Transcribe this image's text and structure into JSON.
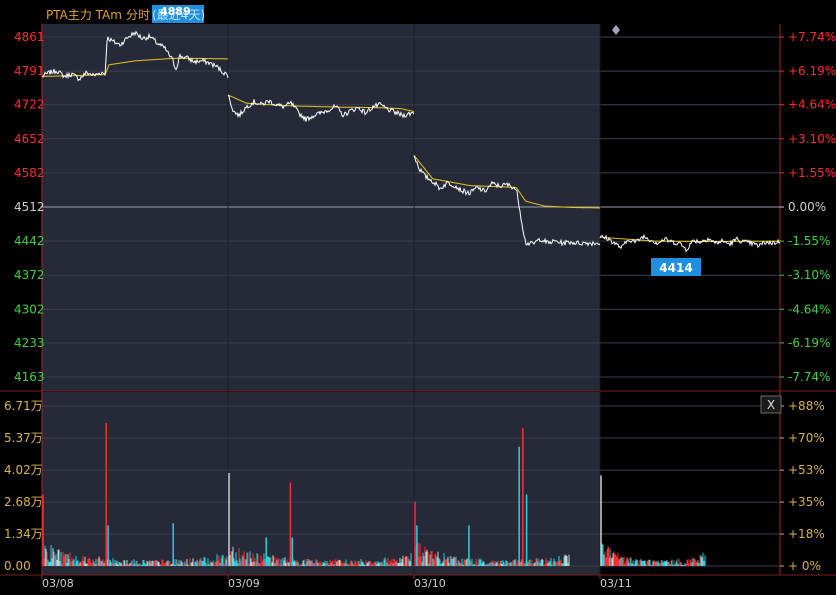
{
  "header": {
    "instrument_label": "PTA主力 TAm",
    "mode_label": "分时",
    "period_label": "(最近4天)",
    "overlay_value": "4889"
  },
  "close_button_label": "X",
  "current_price_badge": "4414",
  "colors": {
    "background": "#000000",
    "history_panel_bg": "#262a38",
    "up": "#ff2a2a",
    "down": "#3fd23f",
    "neutral": "#cfcfcf",
    "price_line": "#ffffff",
    "avg_line": "#e6c619",
    "volume_up": "#ff2d2d",
    "volume_down": "#22d3e0",
    "badge_bg": "#1f8fe0",
    "header_text": "#e2a227"
  },
  "chart_data": [
    {
      "type": "line",
      "title": "PTA主力 TAm 分时 (最近4天)",
      "reference_price": 4512,
      "y_ticks": [
        4861,
        4791,
        4722,
        4652,
        4582,
        4512,
        4442,
        4372,
        4302,
        4233,
        4163
      ],
      "y_right_ticks": [
        "+7.74%",
        "+6.19%",
        "+4.64%",
        "+3.10%",
        "+1.55%",
        "0.00%",
        "-1.55%",
        "-3.10%",
        "-4.64%",
        "-6.19%",
        "-7.74%"
      ],
      "ylim": [
        4163,
        4861
      ],
      "x_tick_labels": [
        "03/08",
        "03/09",
        "03/10",
        "03/11"
      ],
      "grid": true,
      "series": [
        {
          "name": "price",
          "segments": [
            {
              "day": "03/08",
              "points": [
                [
                  0,
                  4780
                ],
                [
                  0.04,
                  4788
                ],
                [
                  0.08,
                  4792
                ],
                [
                  0.12,
                  4780
                ],
                [
                  0.16,
                  4785
                ],
                [
                  0.2,
                  4775
                ],
                [
                  0.24,
                  4788
                ],
                [
                  0.28,
                  4782
                ],
                [
                  0.32,
                  4788
                ],
                [
                  0.34,
                  4785
                ],
                [
                  0.35,
                  4860
                ],
                [
                  0.38,
                  4852
                ],
                [
                  0.42,
                  4845
                ],
                [
                  0.46,
                  4860
                ],
                [
                  0.5,
                  4870
                ],
                [
                  0.54,
                  4858
                ],
                [
                  0.58,
                  4862
                ],
                [
                  0.62,
                  4848
                ],
                [
                  0.66,
                  4838
                ],
                [
                  0.7,
                  4815
                ],
                [
                  0.72,
                  4795
                ],
                [
                  0.74,
                  4822
                ],
                [
                  0.78,
                  4818
                ],
                [
                  0.82,
                  4810
                ],
                [
                  0.86,
                  4812
                ],
                [
                  0.9,
                  4808
                ],
                [
                  0.94,
                  4800
                ],
                [
                  0.97,
                  4790
                ],
                [
                  1,
                  4782
                ]
              ]
            },
            {
              "day": "03/09",
              "points": [
                [
                  0,
                  4742
                ],
                [
                  0.03,
                  4708
                ],
                [
                  0.06,
                  4700
                ],
                [
                  0.1,
                  4718
                ],
                [
                  0.14,
                  4728
                ],
                [
                  0.18,
                  4722
                ],
                [
                  0.22,
                  4730
                ],
                [
                  0.26,
                  4722
                ],
                [
                  0.3,
                  4718
                ],
                [
                  0.34,
                  4725
                ],
                [
                  0.38,
                  4705
                ],
                [
                  0.42,
                  4692
                ],
                [
                  0.46,
                  4700
                ],
                [
                  0.5,
                  4705
                ],
                [
                  0.54,
                  4712
                ],
                [
                  0.58,
                  4718
                ],
                [
                  0.62,
                  4700
                ],
                [
                  0.66,
                  4710
                ],
                [
                  0.7,
                  4716
                ],
                [
                  0.74,
                  4705
                ],
                [
                  0.78,
                  4718
                ],
                [
                  0.82,
                  4722
                ],
                [
                  0.86,
                  4712
                ],
                [
                  0.9,
                  4706
                ],
                [
                  0.94,
                  4700
                ],
                [
                  0.97,
                  4703
                ],
                [
                  1,
                  4706
                ]
              ]
            },
            {
              "day": "03/10",
              "points": [
                [
                  0,
                  4618
                ],
                [
                  0.03,
                  4590
                ],
                [
                  0.06,
                  4575
                ],
                [
                  0.1,
                  4565
                ],
                [
                  0.14,
                  4550
                ],
                [
                  0.18,
                  4562
                ],
                [
                  0.22,
                  4556
                ],
                [
                  0.26,
                  4545
                ],
                [
                  0.3,
                  4540
                ],
                [
                  0.34,
                  4552
                ],
                [
                  0.38,
                  4544
                ],
                [
                  0.42,
                  4560
                ],
                [
                  0.46,
                  4555
                ],
                [
                  0.5,
                  4558
                ],
                [
                  0.54,
                  4552
                ],
                [
                  0.555,
                  4540
                ],
                [
                  0.58,
                  4480
                ],
                [
                  0.6,
                  4438
                ],
                [
                  0.64,
                  4436
                ],
                [
                  0.68,
                  4447
                ],
                [
                  0.72,
                  4438
                ],
                [
                  0.76,
                  4442
                ],
                [
                  0.8,
                  4438
                ],
                [
                  0.84,
                  4440
                ],
                [
                  0.88,
                  4438
                ],
                [
                  0.92,
                  4438
                ],
                [
                  0.96,
                  4438
                ],
                [
                  1,
                  4438
                ]
              ]
            },
            {
              "day": "03/11",
              "points": [
                [
                  0,
                  4450
                ],
                [
                  0.04,
                  4448
                ],
                [
                  0.08,
                  4438
                ],
                [
                  0.12,
                  4428
                ],
                [
                  0.16,
                  4446
                ],
                [
                  0.2,
                  4440
                ],
                [
                  0.24,
                  4452
                ],
                [
                  0.28,
                  4445
                ],
                [
                  0.32,
                  4438
                ],
                [
                  0.36,
                  4446
                ],
                [
                  0.4,
                  4440
                ],
                [
                  0.44,
                  4438
                ],
                [
                  0.48,
                  4425
                ],
                [
                  0.52,
                  4444
                ],
                [
                  0.56,
                  4440
                ],
                [
                  0.6,
                  4448
                ],
                [
                  0.64,
                  4438
                ],
                [
                  0.68,
                  4442
                ],
                [
                  0.72,
                  4436
                ],
                [
                  0.76,
                  4446
                ],
                [
                  0.8,
                  4440
                ],
                [
                  0.84,
                  4438
                ],
                [
                  0.88,
                  4432
                ],
                [
                  0.92,
                  4440
                ],
                [
                  0.96,
                  4438
                ],
                [
                  1,
                  4441
                ]
              ]
            }
          ]
        },
        {
          "name": "average",
          "segments": [
            {
              "day": "03/08",
              "points": [
                [
                  0,
                  4780
                ],
                [
                  0.2,
                  4782
                ],
                [
                  0.34,
                  4784
                ],
                [
                  0.36,
                  4804
                ],
                [
                  0.5,
                  4812
                ],
                [
                  0.7,
                  4817
                ],
                [
                  0.85,
                  4817
                ],
                [
                  1,
                  4816
                ]
              ]
            },
            {
              "day": "03/09",
              "points": [
                [
                  0,
                  4742
                ],
                [
                  0.1,
                  4725
                ],
                [
                  0.3,
                  4720
                ],
                [
                  0.6,
                  4717
                ],
                [
                  0.8,
                  4716
                ],
                [
                  0.93,
                  4714
                ],
                [
                  1,
                  4708
                ]
              ]
            },
            {
              "day": "03/10",
              "points": [
                [
                  0,
                  4618
                ],
                [
                  0.1,
                  4570
                ],
                [
                  0.3,
                  4556
                ],
                [
                  0.5,
                  4553
                ],
                [
                  0.55,
                  4552
                ],
                [
                  0.6,
                  4524
                ],
                [
                  0.7,
                  4514
                ],
                [
                  0.85,
                  4511
                ],
                [
                  1,
                  4510
                ]
              ]
            },
            {
              "day": "03/11",
              "points": [
                [
                  0,
                  4450
                ],
                [
                  0.3,
                  4442
                ],
                [
                  0.6,
                  4441
                ],
                [
                  1,
                  4442
                ]
              ]
            }
          ]
        }
      ]
    },
    {
      "type": "bar",
      "title": "volume",
      "y_ticks": [
        "6.71万",
        "5.37万",
        "4.02万",
        "2.68万",
        "1.34万",
        "0.00"
      ],
      "y_right_ticks": [
        "+88%",
        "+70%",
        "+53%",
        "+35%",
        "+18%",
        "+ 0%"
      ],
      "ylim": [
        0,
        67100
      ],
      "x_tick_labels": [
        "03/08",
        "03/09",
        "03/10",
        "03/11"
      ],
      "spikes": [
        {
          "day": "03/08",
          "pos": 0.0,
          "value": 30000,
          "dir": "up"
        },
        {
          "day": "03/08",
          "pos": 0.34,
          "value": 60000,
          "dir": "up"
        },
        {
          "day": "03/08",
          "pos": 0.35,
          "value": 17000,
          "dir": "down"
        },
        {
          "day": "03/08",
          "pos": 0.7,
          "value": 18000,
          "dir": "down"
        },
        {
          "day": "03/09",
          "pos": 0.0,
          "value": 39000,
          "dir": "neutral"
        },
        {
          "day": "03/09",
          "pos": 0.2,
          "value": 12000,
          "dir": "down"
        },
        {
          "day": "03/09",
          "pos": 0.33,
          "value": 35000,
          "dir": "up"
        },
        {
          "day": "03/09",
          "pos": 0.34,
          "value": 12000,
          "dir": "down"
        },
        {
          "day": "03/10",
          "pos": 0.0,
          "value": 27000,
          "dir": "up"
        },
        {
          "day": "03/10",
          "pos": 0.01,
          "value": 17000,
          "dir": "down"
        },
        {
          "day": "03/10",
          "pos": 0.29,
          "value": 17000,
          "dir": "down"
        },
        {
          "day": "03/10",
          "pos": 0.56,
          "value": 50000,
          "dir": "down"
        },
        {
          "day": "03/10",
          "pos": 0.58,
          "value": 58000,
          "dir": "up"
        },
        {
          "day": "03/10",
          "pos": 0.6,
          "value": 30000,
          "dir": "down"
        },
        {
          "day": "03/11",
          "pos": 0.0,
          "value": 38000,
          "dir": "neutral"
        },
        {
          "day": "03/11",
          "pos": 0.04,
          "value": 8000,
          "dir": "up"
        }
      ]
    }
  ]
}
